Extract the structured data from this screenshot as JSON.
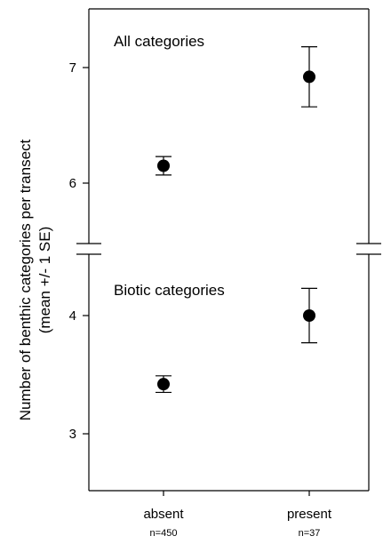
{
  "chart_data": [
    {
      "type": "scatter",
      "title": "All categories",
      "categories": [
        "absent",
        "present"
      ],
      "n_labels": [
        "n=450",
        "n=37"
      ],
      "values": [
        6.15,
        6.92
      ],
      "se": [
        0.08,
        0.26
      ],
      "yticks": [
        6,
        7
      ],
      "ylim": [
        5.55,
        7.5
      ],
      "ylabel": "Number of benthic categories per transect (mean +/- 1 SE)"
    },
    {
      "type": "scatter",
      "title": "Biotic categories",
      "categories": [
        "absent",
        "present"
      ],
      "n_labels": [
        "n=450",
        "n=37"
      ],
      "values": [
        3.42,
        4.0
      ],
      "se": [
        0.07,
        0.23
      ],
      "yticks": [
        3,
        4
      ],
      "ylim": [
        2.52,
        4.52
      ],
      "ylabel": "Number of benthic categories per transect (mean +/- 1 SE)"
    }
  ],
  "ylabel_line1": "Number of benthic categories per transect",
  "ylabel_line2": "(mean +/- 1 SE)"
}
